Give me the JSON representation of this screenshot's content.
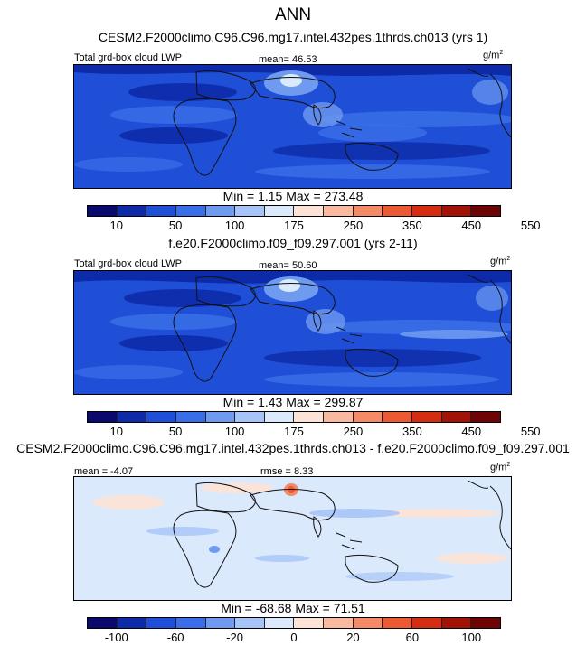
{
  "header": {
    "title": "ANN",
    "subtitle": "CESM2.F2000climo.C96.C96.mg17.intel.432pes.1thrds.ch013 (yrs 1)"
  },
  "panels": [
    {
      "variable_label": "Total grd-box cloud LWP",
      "stat_label": "mean=  46.53",
      "unit_base": "g/m",
      "unit_exp": "2",
      "minmax": "Min =   1.15 Max = 273.48",
      "colorbar_ticks": [
        "10",
        "50",
        "100",
        "175",
        "250",
        "350",
        "450",
        "550"
      ],
      "colorbar_colors": [
        "#0a0a6e",
        "#0d2aa8",
        "#1f4fd6",
        "#3a6ee8",
        "#6e9af0",
        "#a6c4f7",
        "#dbe9fd",
        "#fde3d5",
        "#f9b99e",
        "#f58a66",
        "#ec5a33",
        "#d42d12",
        "#a31207",
        "#6f0404"
      ]
    },
    {
      "caption": "f.e20.F2000climo.f09_f09.297.001 (yrs 2-11)",
      "variable_label": "Total grd-box cloud LWP",
      "stat_label": "mean=  50.60",
      "unit_base": "g/m",
      "unit_exp": "2",
      "minmax": "Min =   1.43 Max = 299.87",
      "colorbar_ticks": [
        "10",
        "50",
        "100",
        "175",
        "250",
        "350",
        "450",
        "550"
      ],
      "colorbar_colors": [
        "#0a0a6e",
        "#0d2aa8",
        "#1f4fd6",
        "#3a6ee8",
        "#6e9af0",
        "#a6c4f7",
        "#dbe9fd",
        "#fde3d5",
        "#f9b99e",
        "#f58a66",
        "#ec5a33",
        "#d42d12",
        "#a31207",
        "#6f0404"
      ]
    },
    {
      "caption": "CESM2.F2000climo.C96.C96.mg17.intel.432pes.1thrds.ch013 - f.e20.F2000climo.f09_f09.297.001",
      "mean_label": "mean =  -4.07",
      "rmse_label": "rmse =   8.33",
      "unit_base": "g/m",
      "unit_exp": "2",
      "minmax": "Min = -68.68 Max =  71.51",
      "colorbar_ticks": [
        "-100",
        "-60",
        "-20",
        "0",
        "20",
        "60",
        "100"
      ],
      "colorbar_colors": [
        "#0a0a6e",
        "#0d2aa8",
        "#1f4fd6",
        "#3a6ee8",
        "#6e9af0",
        "#a6c4f7",
        "#dbe9fd",
        "#fde3d5",
        "#f9b99e",
        "#f58a66",
        "#ec5a33",
        "#d42d12",
        "#a31207",
        "#6f0404"
      ]
    }
  ]
}
